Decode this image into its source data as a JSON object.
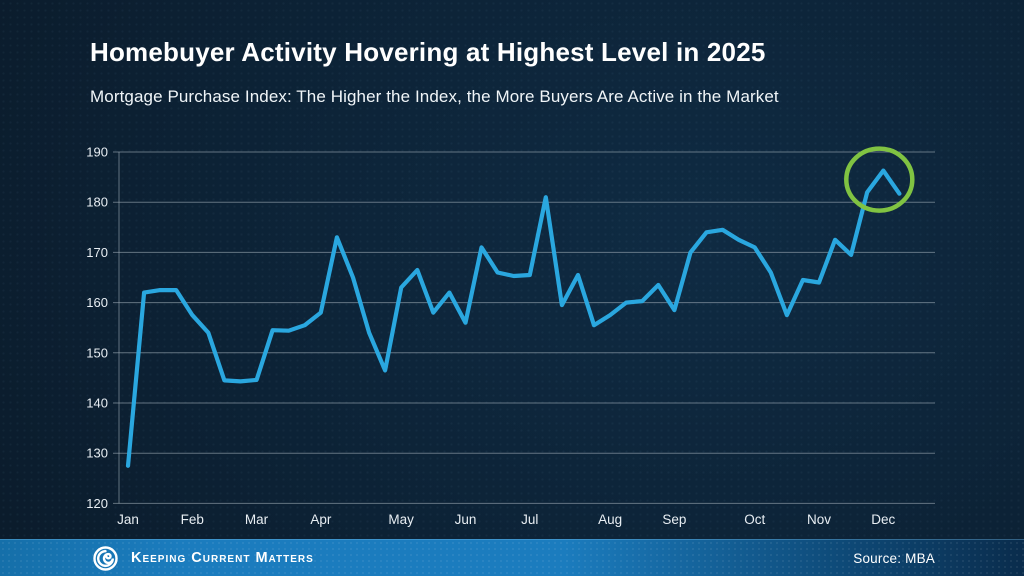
{
  "header": {
    "title": "Homebuyer Activity Hovering at Highest Level in 2025",
    "subtitle": "Mortgage Purchase Index: The Higher the Index, the More Buyers Are Active in the Market"
  },
  "chart_data": {
    "type": "line",
    "title": "Homebuyer Activity Hovering at Highest Level in 2025",
    "subtitle": "Mortgage Purchase Index: The Higher the Index, the More Buyers Are Active in the Market",
    "cadence": "weekly",
    "series": [
      {
        "name": "Mortgage Purchase Index",
        "values": [
          127.5,
          162,
          162.5,
          162.5,
          157.5,
          154,
          144.5,
          144.3,
          144.6,
          154.5,
          154.4,
          155.5,
          158,
          173,
          165,
          154,
          146.5,
          163,
          166.5,
          158,
          162,
          156,
          171,
          166,
          165.3,
          165.5,
          181,
          159.5,
          165.5,
          155.5,
          157.5,
          160,
          160.3,
          163.5,
          158.5,
          170,
          174,
          174.5,
          172.5,
          171,
          166,
          157.5,
          164.5,
          164,
          172.5,
          169.5,
          182,
          186.3,
          181.7
        ]
      }
    ],
    "x_tick_labels": [
      "Jan",
      "Feb",
      "Mar",
      "Apr",
      "May",
      "Jun",
      "Jul",
      "Aug",
      "Sep",
      "Oct",
      "Nov",
      "Dec"
    ],
    "x_tick_week_indices": [
      0,
      4,
      8,
      12,
      17,
      21,
      25,
      30,
      34,
      39,
      43,
      47
    ],
    "ylim": [
      120,
      190
    ],
    "yticks": [
      120,
      130,
      140,
      150,
      160,
      170,
      180,
      190
    ],
    "grid": "horizontal-only",
    "legend": "none",
    "annotation": {
      "shape": "circle",
      "week_index": 47,
      "value": 186.3
    }
  },
  "colors": {
    "line_blue": "#2aa7df",
    "highlight_green": "#80c342",
    "grid_gray": "rgba(158,172,182,0.6)",
    "axis_text": "#e8eef3",
    "footer_blue_left": "#1b7cbe",
    "footer_blue_right": "#0a2c4c"
  },
  "footer": {
    "brand": "Keeping Current Matters",
    "source": "Source: MBA"
  }
}
